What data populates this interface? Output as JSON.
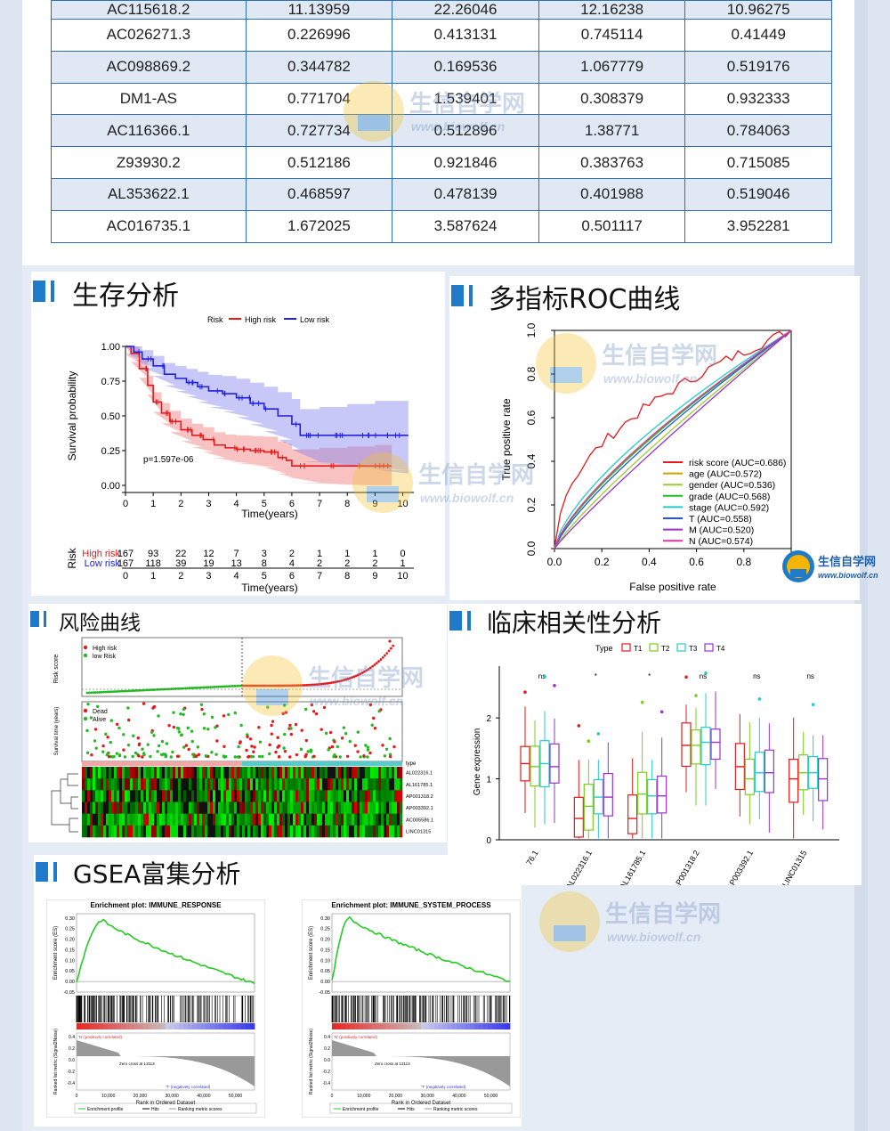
{
  "table": {
    "rows": [
      [
        "AC115618.2",
        "11.13959",
        "22.26046",
        "12.16238",
        "10.96275"
      ],
      [
        "AC026271.3",
        "0.226996",
        "0.413131",
        "0.745114",
        "0.41449"
      ],
      [
        "AC098869.2",
        "0.344782",
        "0.169536",
        "1.067779",
        "0.519176"
      ],
      [
        "DM1-AS",
        "0.771704",
        "1.539401",
        "0.308379",
        "0.932333"
      ],
      [
        "AC116366.1",
        "0.727734",
        "0.512896",
        "1.38771",
        "0.784063"
      ],
      [
        "Z93930.2",
        "0.512186",
        "0.921846",
        "0.383763",
        "0.715085"
      ],
      [
        "AL353622.1",
        "0.468597",
        "0.478139",
        "0.401988",
        "0.519046"
      ],
      [
        "AC016735.1",
        "1.672025",
        "3.587624",
        "0.501117",
        "3.952281"
      ]
    ]
  },
  "sections": {
    "survival": "生存分析",
    "roc": "多指标ROC曲线",
    "risk": "风险曲线",
    "clinical": "临床相关性分析",
    "gsea": "GSEA富集分析"
  },
  "watermark": {
    "cn": "生信自学网",
    "en": "www.biowolf.cn"
  },
  "colors": {
    "accent": "#1f7ac9",
    "table_border": "#2c6fb4",
    "high_risk": "#e41a1c",
    "low_risk": "#2222dd"
  },
  "chart_data": [
    {
      "type": "line",
      "id": "km",
      "legend_title": "Risk",
      "xlabel": "Time(years)",
      "ylabel": "Survival probability",
      "annotation": "p=1.597e-06",
      "x_ticks": [
        0,
        1,
        2,
        3,
        4,
        5,
        6,
        7,
        8,
        9,
        10
      ],
      "y_ticks": [
        "0.00",
        "0.25",
        "0.50",
        "0.75",
        "1.00"
      ],
      "xlim": [
        0,
        10.4
      ],
      "ylim": [
        0,
        1
      ],
      "series": [
        {
          "name": "High risk",
          "color": "#e41a1c",
          "x": [
            0,
            0.2,
            0.5,
            0.8,
            1.0,
            1.3,
            1.6,
            2.0,
            2.4,
            2.8,
            3.2,
            3.6,
            4.0,
            4.5,
            5.0,
            5.5,
            5.8,
            6.0,
            7.0,
            8.0,
            9.0,
            9.6
          ],
          "y": [
            1.0,
            0.95,
            0.84,
            0.72,
            0.6,
            0.52,
            0.46,
            0.4,
            0.36,
            0.33,
            0.29,
            0.27,
            0.26,
            0.25,
            0.24,
            0.2,
            0.18,
            0.14,
            0.14,
            0.14,
            0.14,
            0.14
          ]
        },
        {
          "name": "Low risk",
          "color": "#2222dd",
          "x": [
            0,
            0.3,
            0.6,
            1.0,
            1.4,
            1.8,
            2.2,
            2.6,
            3.0,
            3.5,
            4.0,
            4.5,
            5.0,
            5.5,
            6.0,
            6.3,
            7.0,
            8.0,
            9.0,
            10.2
          ],
          "y": [
            1.0,
            0.96,
            0.91,
            0.86,
            0.8,
            0.77,
            0.74,
            0.71,
            0.68,
            0.66,
            0.63,
            0.59,
            0.55,
            0.5,
            0.44,
            0.36,
            0.36,
            0.36,
            0.36,
            0.36
          ]
        }
      ],
      "risk_table": {
        "label": "Risk",
        "rows": [
          {
            "name": "High risk",
            "values": [
              "167",
              "93",
              "22",
              "12",
              "7",
              "3",
              "2",
              "1",
              "1",
              "1",
              "0"
            ]
          },
          {
            "name": "Low risk",
            "values": [
              "167",
              "118",
              "39",
              "19",
              "13",
              "8",
              "4",
              "2",
              "2",
              "2",
              "1"
            ]
          }
        ]
      }
    },
    {
      "type": "line",
      "id": "roc",
      "xlabel": "False positive rate",
      "ylabel": "True positive rate",
      "ticks": [
        "0.0",
        "0.2",
        "0.4",
        "0.6",
        "0.8",
        "1.0"
      ],
      "xlim": [
        0,
        1
      ],
      "ylim": [
        0,
        1
      ],
      "series": [
        {
          "name": "risk score (AUC=0.686)",
          "color": "#e41a1c"
        },
        {
          "name": "age (AUC=0.572)",
          "color": "#cfa400"
        },
        {
          "name": "gender (AUC=0.536)",
          "color": "#9acd32"
        },
        {
          "name": "grade (AUC=0.568)",
          "color": "#22bb22"
        },
        {
          "name": "stage (AUC=0.592)",
          "color": "#22cccc"
        },
        {
          "name": "T (AUC=0.558)",
          "color": "#2255ee"
        },
        {
          "name": "M (AUC=0.520)",
          "color": "#9933cc"
        },
        {
          "name": "N (AUC=0.574)",
          "color": "#dd33aa"
        }
      ]
    },
    {
      "type": "scatter",
      "id": "riskcurve",
      "ylabel_top": "Risk score",
      "ylabel_mid": "Survival time (years)",
      "legend_top": [
        "High risk",
        "low Risk"
      ],
      "legend_mid": [
        "Dead",
        "Alive"
      ],
      "heatmap_type_label": "type",
      "genes": [
        "AL022316.1",
        "AL161785.1",
        "AP001318.2",
        "AP003392.1",
        "AC005586.1",
        "LINC01315"
      ]
    },
    {
      "type": "box",
      "id": "clinical",
      "legend_title": "Type",
      "groups": [
        "T1",
        "T2",
        "T3",
        "T4"
      ],
      "group_colors": [
        "#e41a1c",
        "#7ccd20",
        "#22cccc",
        "#9933cc"
      ],
      "ylabel": "Gene expression",
      "y_ticks": [
        "0",
        "1",
        "2"
      ],
      "sig": [
        "ns",
        "*",
        "*",
        "ns",
        "ns",
        "ns"
      ],
      "genes": [
        "76.1",
        "AL022316.1",
        "AL161785.1",
        "AP001318.2",
        "AP003392.1",
        "LINC01315"
      ],
      "medians": [
        [
          1.25,
          1.2,
          1.25,
          1.2
        ],
        [
          0.35,
          0.55,
          0.7,
          0.7
        ],
        [
          0.35,
          0.75,
          0.72,
          0.72
        ],
        [
          1.55,
          1.55,
          1.6,
          1.6
        ],
        [
          1.2,
          1.0,
          1.1,
          1.1
        ],
        [
          1.0,
          1.1,
          1.1,
          1.0
        ]
      ]
    },
    {
      "type": "line",
      "id": "gsea1",
      "title": "Enrichment plot: IMMUNE_RESPONSE",
      "ylabel": "Enrichment score (ES)",
      "xlabel": "Rank in Ordered Dataset",
      "ylabel_bottom": "Ranked list metric (Signal2Noise)",
      "es_ticks": [
        "0.30",
        "0.25",
        "0.20",
        "0.15",
        "0.10",
        "0.05",
        "0.00",
        "-0.05"
      ],
      "x_ticks": [
        "0",
        "10,000",
        "20,000",
        "30,000",
        "40,000",
        "50,000"
      ],
      "pos_label": "'N' (positively correlated)",
      "neg_label": "'T' (negatively correlated)",
      "zero_cross": "Zero cross at 13113",
      "legend": [
        "Enrichment profile",
        "Hits",
        "Ranking metric scores"
      ]
    },
    {
      "type": "line",
      "id": "gsea2",
      "title": "Enrichment plot: IMMUNE_SYSTEM_PROCESS",
      "ylabel": "Enrichment score (ES)",
      "xlabel": "Rank in Ordered Dataset",
      "ylabel_bottom": "Ranked list metric (Signal2Noise)",
      "es_ticks": [
        "0.30",
        "0.25",
        "0.20",
        "0.15",
        "0.10",
        "0.05",
        "0.00",
        "-0.05"
      ],
      "x_ticks": [
        "0",
        "10,000",
        "20,000",
        "30,000",
        "40,000",
        "50,000"
      ],
      "pos_label": "'N' (positively correlated)",
      "neg_label": "'T' (negatively correlated)",
      "zero_cross": "Zero cross at 13113",
      "legend": [
        "Enrichment profile",
        "Hits",
        "Ranking metric scores"
      ]
    }
  ]
}
